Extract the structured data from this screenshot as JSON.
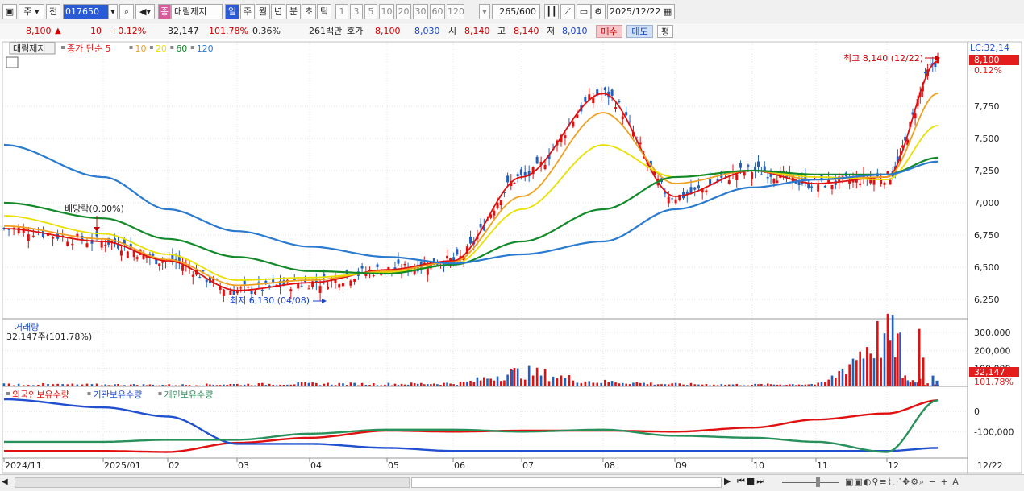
{
  "toolbar": {
    "menu_icon": "square-icon",
    "market": "주",
    "prev": "전",
    "code": "017650",
    "search_icon": "search-icon",
    "sound_icon": "speaker-icon",
    "jong_badge": "종",
    "stock_name": "대림제지",
    "periods": [
      "일",
      "주",
      "월",
      "년",
      "분",
      "초",
      "틱"
    ],
    "active_period": "일",
    "intervals": [
      "1",
      "3",
      "5",
      "10",
      "20",
      "30",
      "60",
      "120"
    ],
    "count": "265",
    "count_total": "/600",
    "date": "2025/12/22"
  },
  "quote": {
    "price": "8,100",
    "change_arrow": "▲",
    "change": "10",
    "change_pct": "+0.12%",
    "volume": "32,147",
    "volume_ratio": "101.78%",
    "turnover": "0.36%",
    "amount": "261백만",
    "hoga_label": "호가",
    "ask": "8,100",
    "bid": "8,030",
    "open_label": "시",
    "open": "8,140",
    "high_label": "고",
    "high": "8,140",
    "low_label": "저",
    "low": "8,010",
    "buy_btn": "매수",
    "sell_btn": "매도",
    "avg_btn": "평"
  },
  "price_panel": {
    "name_box": "대림제지",
    "legend": [
      {
        "label": "종가 단순 5",
        "color": "#e01010"
      },
      {
        "label": "10",
        "color": "#f0a020"
      },
      {
        "label": "20",
        "color": "#e8e000"
      },
      {
        "label": "60",
        "color": "#138a2a"
      },
      {
        "label": "120",
        "color": "#2a7ad0"
      }
    ],
    "lc_label": "LC:32,14",
    "last_price_tag": "8,100",
    "pct_tag": "0.12%",
    "high_label": "최고 8,140 (12/22)",
    "low_label": "최저 6,130 (04/08)",
    "dividend_label": "배당락(0.00%)",
    "y_ticks": [
      "7,750",
      "7,500",
      "7,250",
      "7,000",
      "6,750",
      "6,500",
      "6,250"
    ]
  },
  "volume_panel": {
    "title": "거래량",
    "value": "32,147주(101.78%)",
    "y_ticks": [
      "300,000",
      "200,000",
      "100,000"
    ],
    "tag": "32,147",
    "tag_pct": "101.78%"
  },
  "holdings_panel": {
    "legend": [
      {
        "label": "외국인보유수량",
        "color": "#e01010"
      },
      {
        "label": "기관보유수량",
        "color": "#2050d0"
      },
      {
        "label": "개인보유수량",
        "color": "#28905a"
      }
    ],
    "y_ticks": [
      "0",
      "-100,000"
    ]
  },
  "x_axis": {
    "labels": [
      "2024/11",
      "2025/01",
      "02",
      "03",
      "04",
      "05",
      "06",
      "07",
      "08",
      "09",
      "10",
      "11",
      "12"
    ],
    "last_date": "12/22"
  },
  "colors": {
    "up": "#e01010",
    "down": "#2060c0",
    "ma5": "#e01010",
    "ma10": "#f0a020",
    "ma20": "#e8e000",
    "ma60": "#138a2a",
    "ma120": "#2a7ad0"
  },
  "chart_data": [
    {
      "type": "line",
      "title": "대림제지",
      "ylim": [
        6100,
        8250
      ],
      "x": [
        "2024/11",
        "2025/01",
        "02",
        "03",
        "04",
        "05",
        "06",
        "07",
        "08",
        "09",
        "10",
        "11",
        "12",
        "12/22"
      ],
      "series": [
        {
          "name": "종가 단순 5",
          "values": [
            6800,
            6700,
            6550,
            6320,
            6380,
            6480,
            6550,
            7200,
            7850,
            7050,
            7250,
            7150,
            7200,
            8100
          ]
        },
        {
          "name": "10",
          "values": [
            6820,
            6720,
            6560,
            6360,
            6400,
            6470,
            6540,
            7050,
            7700,
            7150,
            7250,
            7180,
            7200,
            7850
          ]
        },
        {
          "name": "20",
          "values": [
            6900,
            6760,
            6600,
            6400,
            6420,
            6460,
            6520,
            6950,
            7450,
            7200,
            7250,
            7200,
            7180,
            7600
          ]
        },
        {
          "name": "60",
          "values": [
            7000,
            6880,
            6720,
            6580,
            6470,
            6450,
            6520,
            6700,
            6950,
            7200,
            7250,
            7220,
            7220,
            7350
          ]
        },
        {
          "name": "120",
          "values": [
            7450,
            7200,
            6950,
            6780,
            6660,
            6580,
            6530,
            6600,
            6700,
            6950,
            7120,
            7180,
            7220,
            7320
          ]
        }
      ]
    },
    {
      "type": "bar",
      "title": "거래량",
      "ylim": [
        0,
        350000
      ],
      "categories": [
        "2024/11",
        "2025/01",
        "02",
        "03",
        "04",
        "05",
        "06",
        "07",
        "08",
        "09",
        "10",
        "11",
        "12",
        "12/22"
      ],
      "values": [
        15000,
        12000,
        10000,
        14000,
        18000,
        16000,
        20000,
        90000,
        30000,
        15000,
        12000,
        15000,
        320000,
        32147
      ]
    },
    {
      "type": "line",
      "x": [
        "2024/11",
        "2025/01",
        "02",
        "03",
        "04",
        "05",
        "06",
        "07",
        "08",
        "09",
        "10",
        "11",
        "12",
        "12/22"
      ],
      "series": [
        {
          "name": "외국인보유수량",
          "values": [
            -195000,
            -195000,
            -200000,
            -155000,
            -130000,
            -95000,
            -100000,
            -95000,
            -95000,
            -100000,
            -80000,
            -40000,
            -10000,
            55000
          ]
        },
        {
          "name": "기관보유수량",
          "values": [
            60000,
            20000,
            -25000,
            -160000,
            -160000,
            -180000,
            -195000,
            -195000,
            -195000,
            -195000,
            -195000,
            -195000,
            -195000,
            -180000
          ]
        },
        {
          "name": "개인보유수량",
          "values": [
            -150000,
            -150000,
            -140000,
            -140000,
            -110000,
            -90000,
            -90000,
            -100000,
            -90000,
            -120000,
            -130000,
            -150000,
            -200000,
            55000
          ]
        }
      ]
    }
  ]
}
